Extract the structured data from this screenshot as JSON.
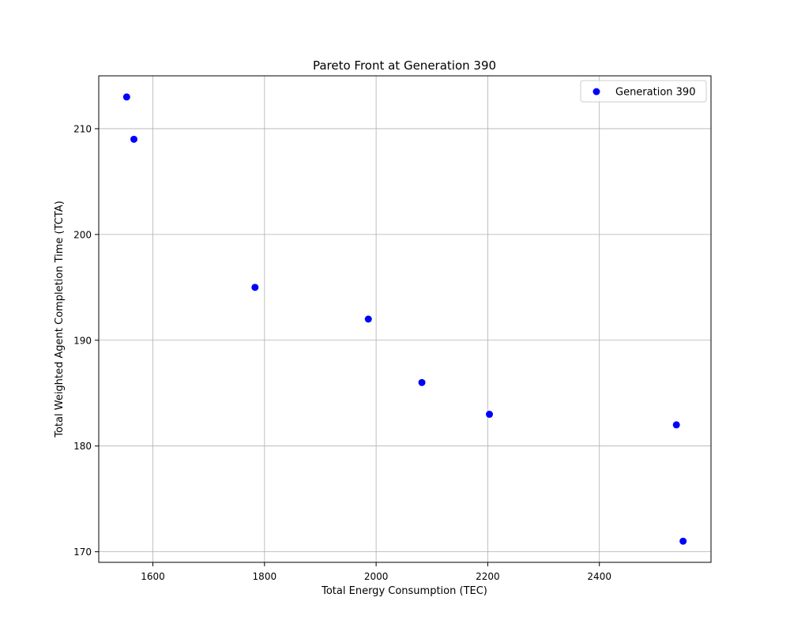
{
  "chart_data": {
    "type": "scatter",
    "title": "Pareto Front at Generation 390",
    "xlabel": "Total Energy Consumption (TEC)",
    "ylabel": "Total Weighted Agent Completion Time (TCTA)",
    "xlim": [
      1503,
      2600
    ],
    "ylim": [
      169,
      215
    ],
    "xticks": [
      1600,
      1800,
      2000,
      2200,
      2400
    ],
    "yticks": [
      170,
      180,
      190,
      200,
      210
    ],
    "grid": true,
    "legend_position": "top-right",
    "series": [
      {
        "name": "Generation 390",
        "color": "#0000ff",
        "marker": "circle",
        "points": [
          {
            "x": 1553,
            "y": 213
          },
          {
            "x": 1566,
            "y": 209
          },
          {
            "x": 1783,
            "y": 195
          },
          {
            "x": 1986,
            "y": 192
          },
          {
            "x": 2082,
            "y": 186
          },
          {
            "x": 2203,
            "y": 183
          },
          {
            "x": 2538,
            "y": 182
          },
          {
            "x": 2550,
            "y": 171
          }
        ]
      }
    ]
  }
}
